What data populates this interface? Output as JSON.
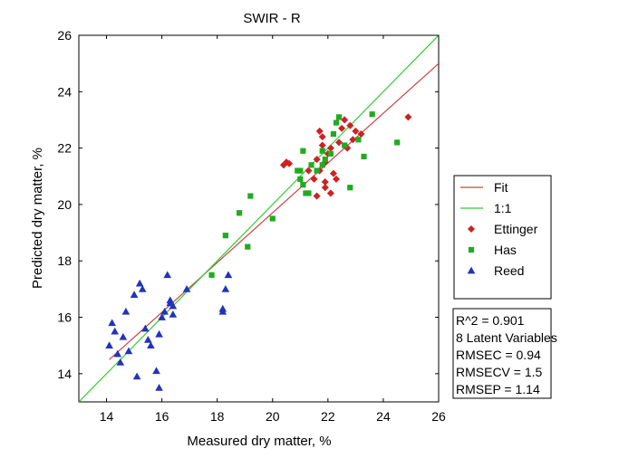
{
  "chart_data": {
    "type": "scatter",
    "title": "SWIR - R",
    "xlabel": "Measured dry matter, %",
    "ylabel": "Predicted dry matter, %",
    "xlim": [
      13,
      26
    ],
    "ylim": [
      13,
      26
    ],
    "xticks": [
      14,
      16,
      18,
      20,
      22,
      24,
      26
    ],
    "yticks": [
      14,
      16,
      18,
      20,
      22,
      24,
      26
    ],
    "grid": false,
    "legend_position": "right",
    "lines": [
      {
        "name": "Fit",
        "color": "#cc4444",
        "x": [
          14.1,
          26.0
        ],
        "y": [
          14.5,
          25.0
        ]
      },
      {
        "name": "1:1",
        "color": "#33cc33",
        "x": [
          13.0,
          26.0
        ],
        "y": [
          13.0,
          26.0
        ]
      }
    ],
    "series": [
      {
        "name": "Ettinger",
        "marker": "diamond",
        "color": "#cc2222",
        "x": [
          20.4,
          20.5,
          20.6,
          21.3,
          21.5,
          21.6,
          21.7,
          21.8,
          21.8,
          21.9,
          21.9,
          22.0,
          22.1,
          22.2,
          22.3,
          22.4,
          22.5,
          22.6,
          22.7,
          22.8,
          22.9,
          23.0,
          23.2,
          21.7,
          21.9,
          22.1,
          24.9,
          21.6
        ],
        "y": [
          21.4,
          21.5,
          21.45,
          21.2,
          20.9,
          20.3,
          22.6,
          22.4,
          22.1,
          21.5,
          20.6,
          21.8,
          20.4,
          21.1,
          20.9,
          22.2,
          22.7,
          23.0,
          22.0,
          22.8,
          22.3,
          22.6,
          22.5,
          21.2,
          20.8,
          22.0,
          23.1,
          21.6
        ]
      },
      {
        "name": "Has",
        "marker": "square",
        "color": "#22aa22",
        "x": [
          17.8,
          18.3,
          18.8,
          19.1,
          19.2,
          20.0,
          20.9,
          21.0,
          21.1,
          21.1,
          21.2,
          21.3,
          21.4,
          21.6,
          21.8,
          21.9,
          22.1,
          22.2,
          22.4,
          22.6,
          22.8,
          23.1,
          23.3,
          23.6,
          24.5,
          21.0,
          21.8,
          22.3
        ],
        "y": [
          17.5,
          18.9,
          19.7,
          18.5,
          20.3,
          19.5,
          21.2,
          21.2,
          21.9,
          20.7,
          20.4,
          20.4,
          21.4,
          21.2,
          21.4,
          21.6,
          21.8,
          22.5,
          23.1,
          22.1,
          20.6,
          22.3,
          21.7,
          23.2,
          22.2,
          20.9,
          21.9,
          22.9
        ]
      },
      {
        "name": "Reed",
        "marker": "triangle",
        "color": "#2233bb",
        "x": [
          14.1,
          14.2,
          14.3,
          14.4,
          14.5,
          14.6,
          14.7,
          14.8,
          15.0,
          15.1,
          15.2,
          15.3,
          15.4,
          15.5,
          15.6,
          15.8,
          15.9,
          16.0,
          16.1,
          16.2,
          16.3,
          16.3,
          16.4,
          16.4,
          16.9,
          18.2,
          18.3,
          18.4,
          18.2,
          15.9
        ],
        "y": [
          15.0,
          15.8,
          15.5,
          14.7,
          14.4,
          15.3,
          16.2,
          14.8,
          16.8,
          13.9,
          17.2,
          17.0,
          15.6,
          15.2,
          15.0,
          14.1,
          13.5,
          16.0,
          16.2,
          17.5,
          16.5,
          16.6,
          16.4,
          16.1,
          17.0,
          16.3,
          17.0,
          17.5,
          16.2,
          15.4
        ]
      }
    ],
    "stats": [
      "R^2 = 0.901",
      "8 Latent Variables",
      "RMSEC = 0.94",
      "RMSECV = 1.5",
      "RMSEP = 1.14"
    ]
  }
}
